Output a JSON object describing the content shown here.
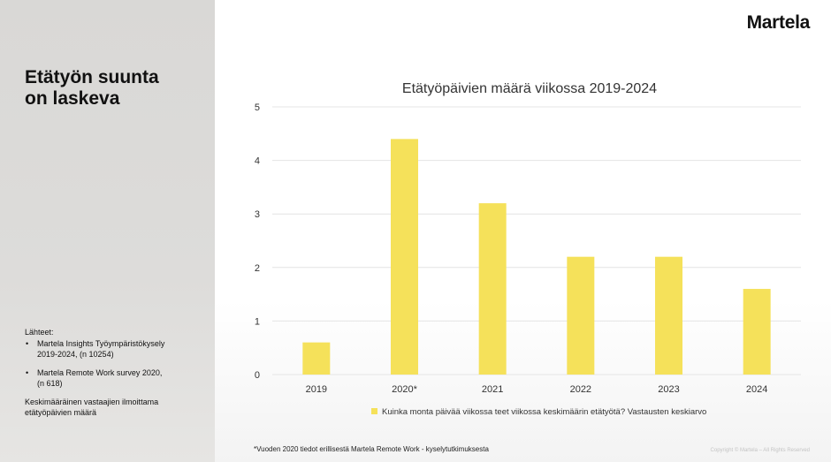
{
  "slide": {
    "title": "Etätyön suunta\non laskeva",
    "logo": "Martela",
    "sources_header": "Lähteet:",
    "sources": [
      "Martela Insights Työympäristökysely\n2019-2024, (n 10254)",
      "Martela Remote Work survey 2020,\n(n 618)"
    ],
    "note": "Keskimääräinen vastaajien ilmoittama\netätyöpäivien määrä",
    "footnote": "*Vuoden 2020 tiedot erillisestä Martela Remote Work - kyselytutkimuksesta",
    "copyright": "Copyright © Martela – All Rights Reserved"
  },
  "colors": {
    "bar": "#f5e15a",
    "grid": "#e4e4e4",
    "text": "#333333"
  },
  "chart_data": {
    "type": "bar",
    "title": "Etätyöpäivien määrä viikossa 2019-2024",
    "categories": [
      "2019",
      "2020*",
      "2021",
      "2022",
      "2023",
      "2024"
    ],
    "values": [
      0.6,
      4.4,
      3.2,
      2.2,
      2.2,
      1.6
    ],
    "ylim": [
      0,
      5
    ],
    "yticks": [
      "0",
      "1",
      "2",
      "3",
      "4",
      "5"
    ],
    "legend": "Kuinka monta päivää viikossa teet viikossa keskimäärin etätyötä? Vastausten keskiarvo",
    "legend_position": "bottom",
    "xlabel": "",
    "ylabel": "",
    "grid": true
  }
}
